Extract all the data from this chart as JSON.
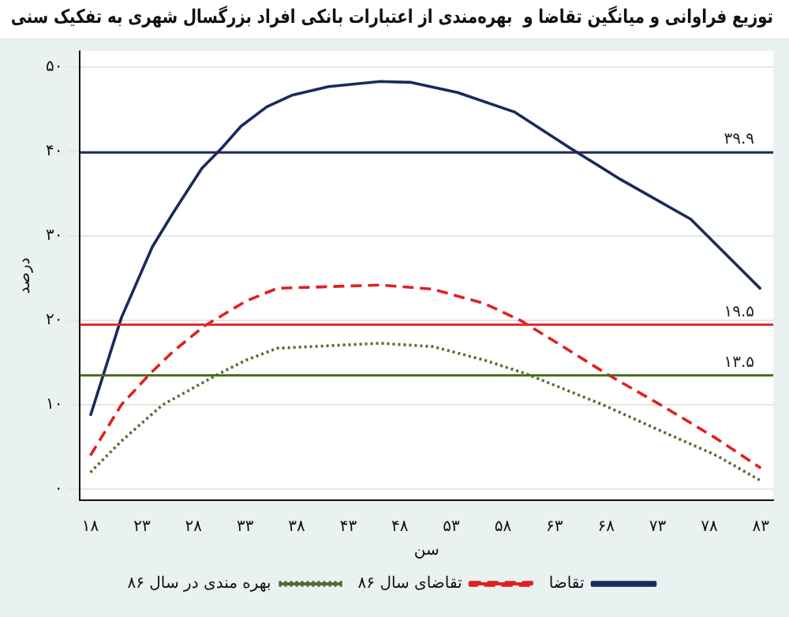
{
  "chart_data": {
    "type": "line",
    "title": "توزیع فراوانی و میانگین تقاضا و  بهره‌مندی از اعتبارات بانکی افراد بزرگسال شهری به تفکیک سنی",
    "xlabel": "سن",
    "ylabel": "درصد",
    "xlim": [
      17,
      84.2
    ],
    "ylim": [
      -1.3,
      51.9
    ],
    "xticks": [
      {
        "value": 18,
        "label": "۱۸"
      },
      {
        "value": 23,
        "label": "۲۳"
      },
      {
        "value": 28,
        "label": "۲۸"
      },
      {
        "value": 33,
        "label": "۳۳"
      },
      {
        "value": 38,
        "label": "۳۸"
      },
      {
        "value": 43,
        "label": "۴۳"
      },
      {
        "value": 48,
        "label": "۴۸"
      },
      {
        "value": 53,
        "label": "۵۳"
      },
      {
        "value": 58,
        "label": "۵۸"
      },
      {
        "value": 63,
        "label": "۶۳"
      },
      {
        "value": 68,
        "label": "۶۸"
      },
      {
        "value": 73,
        "label": "۷۳"
      },
      {
        "value": 78,
        "label": "۷۸"
      },
      {
        "value": 83,
        "label": "۸۳"
      }
    ],
    "yticks": [
      {
        "value": 0,
        "label": "۰"
      },
      {
        "value": 10,
        "label": "۱۰"
      },
      {
        "value": 20,
        "label": "۲۰"
      },
      {
        "value": 30,
        "label": "۳۰"
      },
      {
        "value": 40,
        "label": "۴۰"
      },
      {
        "value": 50,
        "label": "۵۰"
      }
    ],
    "grid": "y",
    "legend": "bottom",
    "marker": "none",
    "series": [
      {
        "name": "تقاضا",
        "color": "#1a2a5e",
        "line_style": "solid",
        "x": [
          18,
          21,
          24,
          26,
          28.8,
          30.8,
          32.6,
          35.1,
          37.6,
          41.1,
          46.1,
          49.1,
          53.6,
          59.1,
          64.4,
          69.4,
          76.2,
          83
        ],
        "values": [
          8.7,
          20.3,
          28.7,
          32.7,
          38,
          40.5,
          43,
          45.3,
          46.7,
          47.7,
          48.3,
          48.2,
          47,
          44.7,
          40.5,
          36.7,
          32,
          23.7
        ]
      },
      {
        "name": "تقاضای سال ۸۶",
        "color": "#e02020",
        "line_style": "dashed",
        "x": [
          18,
          21,
          23.8,
          26,
          29,
          33.1,
          36.1,
          41.1,
          46.1,
          51.2,
          56.2,
          59.7,
          63.7,
          68,
          73.7,
          78.7,
          83
        ],
        "values": [
          4,
          10,
          13.7,
          16.3,
          19.3,
          22.3,
          23.8,
          24,
          24.2,
          23.7,
          22,
          20,
          17,
          13.7,
          9.7,
          6,
          2.5
        ]
      },
      {
        "name": "بهره مندی در سال ۸۶",
        "color": "#556b2f",
        "line_style": "dotted",
        "x": [
          18,
          21,
          25,
          30.5,
          33.1,
          36.1,
          41.1,
          46.1,
          51.2,
          56.2,
          60.2,
          67.7,
          73.7,
          78.7,
          83
        ],
        "values": [
          2,
          5.7,
          10,
          13.7,
          15.3,
          16.7,
          17,
          17.3,
          16.9,
          15.3,
          13.7,
          10,
          6.7,
          4,
          1
        ]
      }
    ],
    "ref_lines": [
      {
        "axis": "y",
        "value": 39.9,
        "label": "۳۹.۹",
        "color": "#1f2a5a"
      },
      {
        "axis": "y",
        "value": 19.5,
        "label": "۱۹.۵",
        "color": "#e03030"
      },
      {
        "axis": "y",
        "value": 13.5,
        "label": "۱۳.۵",
        "color": "#4a6a1a"
      }
    ]
  }
}
